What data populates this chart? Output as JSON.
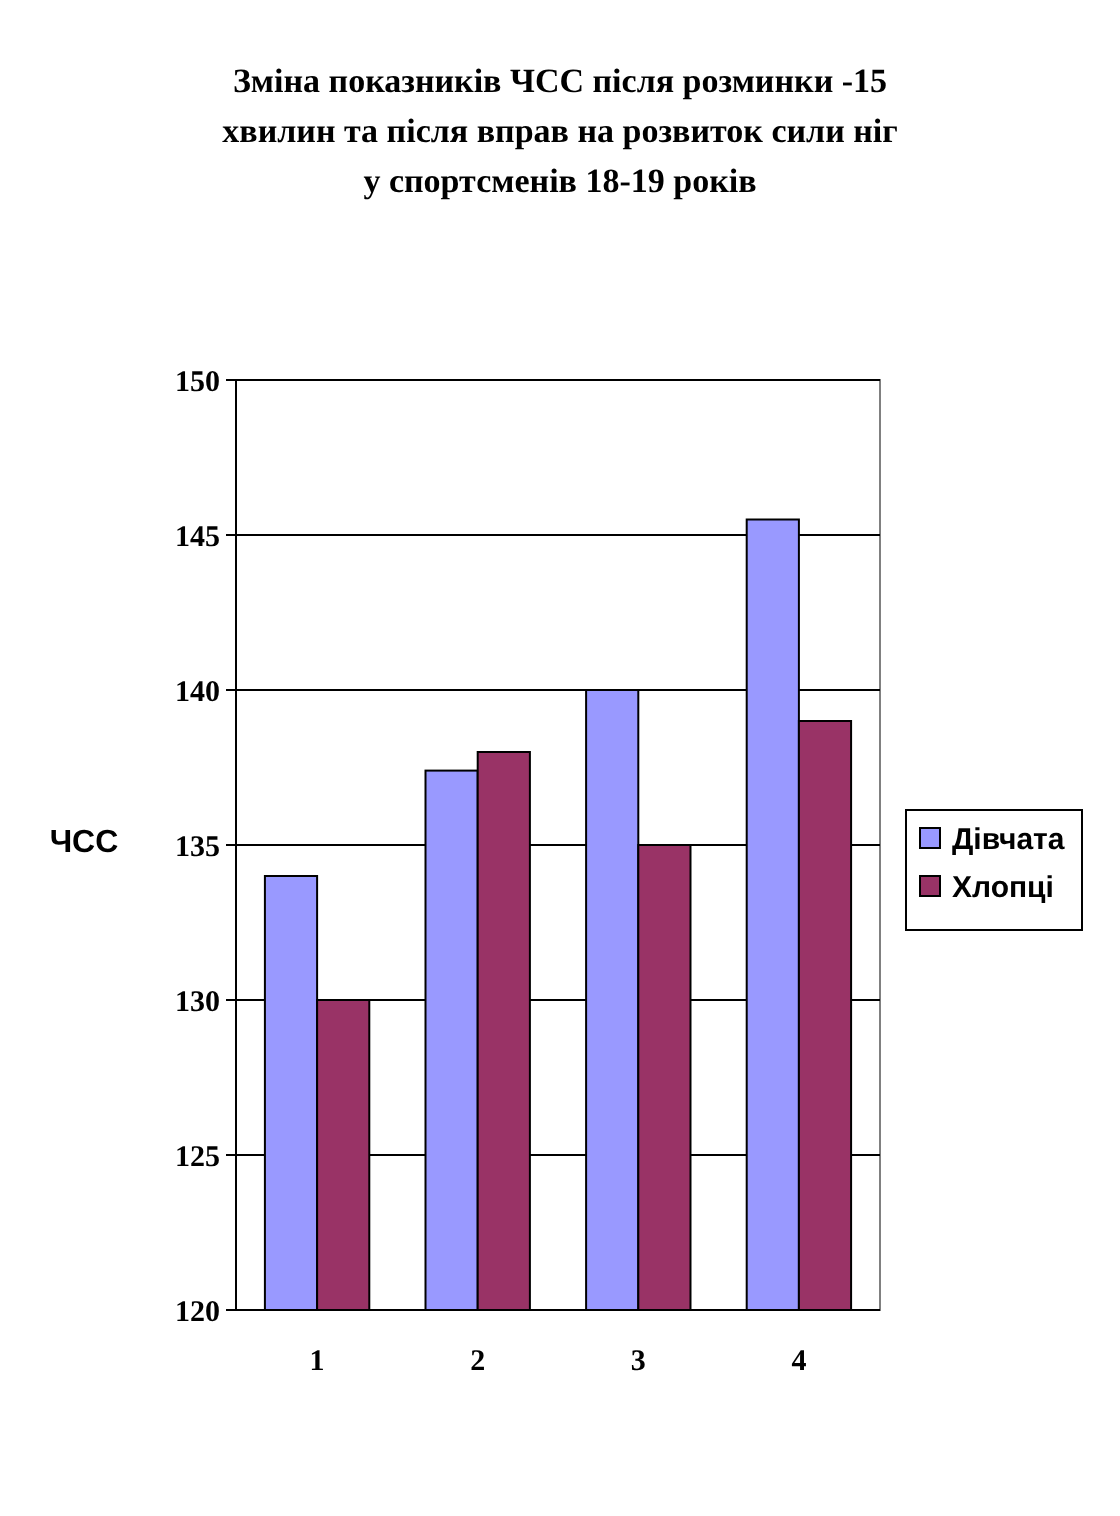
{
  "chart_data": {
    "type": "bar",
    "title": "Зміна показників ЧСС після розминки -15 хвилин та після вправ на розвиток сили ніг у спортсменів 18-19 років",
    "ylabel": "ЧСС",
    "categories": [
      "1",
      "2",
      "3",
      "4"
    ],
    "series": [
      {
        "name": "Дівчата",
        "color": "#9999ff",
        "values": [
          134,
          137.4,
          140,
          145.5
        ]
      },
      {
        "name": "Хлопці",
        "color": "#993366",
        "values": [
          130,
          138,
          135,
          139
        ]
      }
    ],
    "ylim": [
      120,
      150
    ],
    "yticks": [
      120,
      125,
      130,
      135,
      140,
      145,
      150
    ],
    "grid": "y",
    "legend": "right"
  }
}
